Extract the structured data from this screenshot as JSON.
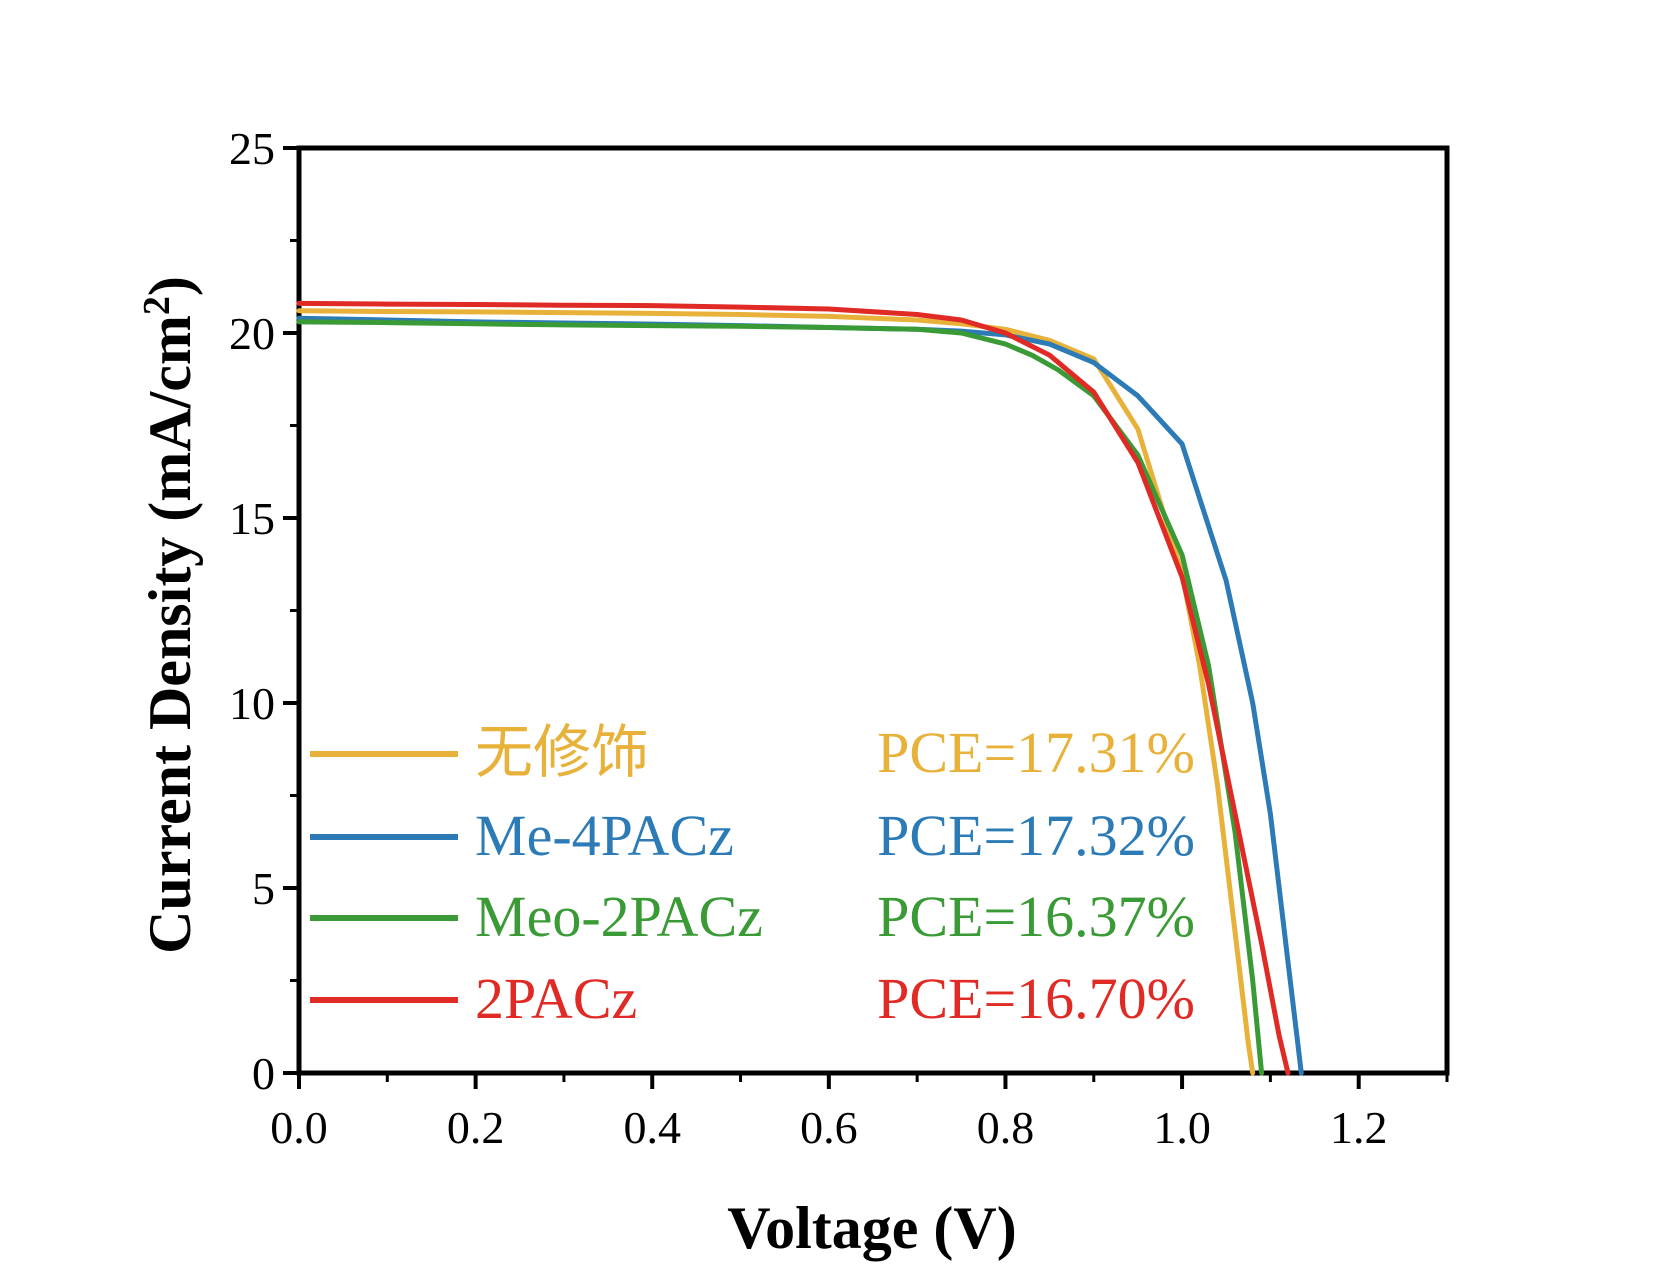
{
  "chart_data": {
    "type": "line",
    "title": "",
    "xlabel": "Voltage (V)",
    "ylabel": "Current Density (mA/cm",
    "ylabel_superscript": "2",
    "ylabel_suffix": ")",
    "xlim": [
      0.0,
      1.3
    ],
    "ylim": [
      0,
      25
    ],
    "xticks": [
      0.0,
      0.2,
      0.4,
      0.6,
      0.8,
      1.0,
      1.2
    ],
    "xtick_labels": [
      "0.0",
      "0.2",
      "0.4",
      "0.6",
      "0.8",
      "1.0",
      "1.2"
    ],
    "yticks": [
      0,
      5,
      10,
      15,
      20,
      25
    ],
    "ytick_labels": [
      "0",
      "5",
      "10",
      "15",
      "20",
      "25"
    ],
    "grid": false,
    "legend_position": "bottom-left",
    "series": [
      {
        "name": "无修饰",
        "pce": "PCE=17.31%",
        "color": "#E8B23A",
        "x": [
          0.0,
          0.1,
          0.2,
          0.3,
          0.4,
          0.5,
          0.6,
          0.7,
          0.75,
          0.8,
          0.85,
          0.9,
          0.95,
          1.0,
          1.02,
          1.04,
          1.06,
          1.075,
          1.08
        ],
        "y": [
          20.6,
          20.58,
          20.57,
          20.55,
          20.53,
          20.5,
          20.45,
          20.35,
          20.25,
          20.1,
          19.8,
          19.3,
          17.4,
          13.5,
          11.0,
          7.8,
          3.8,
          0.8,
          0.0
        ]
      },
      {
        "name": "Me-4PACz",
        "pce": "PCE=17.32%",
        "color": "#2C7BB6",
        "x": [
          0.0,
          0.1,
          0.2,
          0.3,
          0.4,
          0.5,
          0.6,
          0.7,
          0.75,
          0.8,
          0.85,
          0.9,
          0.95,
          1.0,
          1.05,
          1.08,
          1.1,
          1.12,
          1.13,
          1.135
        ],
        "y": [
          20.4,
          20.35,
          20.3,
          20.27,
          20.24,
          20.2,
          20.15,
          20.1,
          20.05,
          19.95,
          19.7,
          19.2,
          18.3,
          17.0,
          13.3,
          10.0,
          7.0,
          3.0,
          1.0,
          0.0
        ]
      },
      {
        "name": "Meo-2PACz",
        "pce": "PCE=16.37%",
        "color": "#3A9A35",
        "x": [
          0.0,
          0.1,
          0.2,
          0.3,
          0.4,
          0.5,
          0.6,
          0.7,
          0.75,
          0.8,
          0.83,
          0.86,
          0.9,
          0.95,
          1.0,
          1.03,
          1.06,
          1.08,
          1.09
        ],
        "y": [
          20.3,
          20.28,
          20.25,
          20.22,
          20.2,
          20.18,
          20.15,
          20.1,
          20.0,
          19.7,
          19.4,
          19.0,
          18.3,
          16.7,
          14.0,
          11.0,
          6.5,
          2.5,
          0.0
        ]
      },
      {
        "name": "2PACz",
        "pce": "PCE=16.70%",
        "color": "#E02A25",
        "x": [
          0.0,
          0.1,
          0.2,
          0.3,
          0.4,
          0.5,
          0.6,
          0.7,
          0.75,
          0.8,
          0.85,
          0.9,
          0.95,
          1.0,
          1.03,
          1.06,
          1.09,
          1.11,
          1.12
        ],
        "y": [
          20.8,
          20.78,
          20.77,
          20.75,
          20.74,
          20.7,
          20.65,
          20.5,
          20.35,
          20.0,
          19.4,
          18.4,
          16.5,
          13.4,
          10.5,
          7.0,
          3.5,
          1.0,
          0.0
        ]
      }
    ]
  }
}
